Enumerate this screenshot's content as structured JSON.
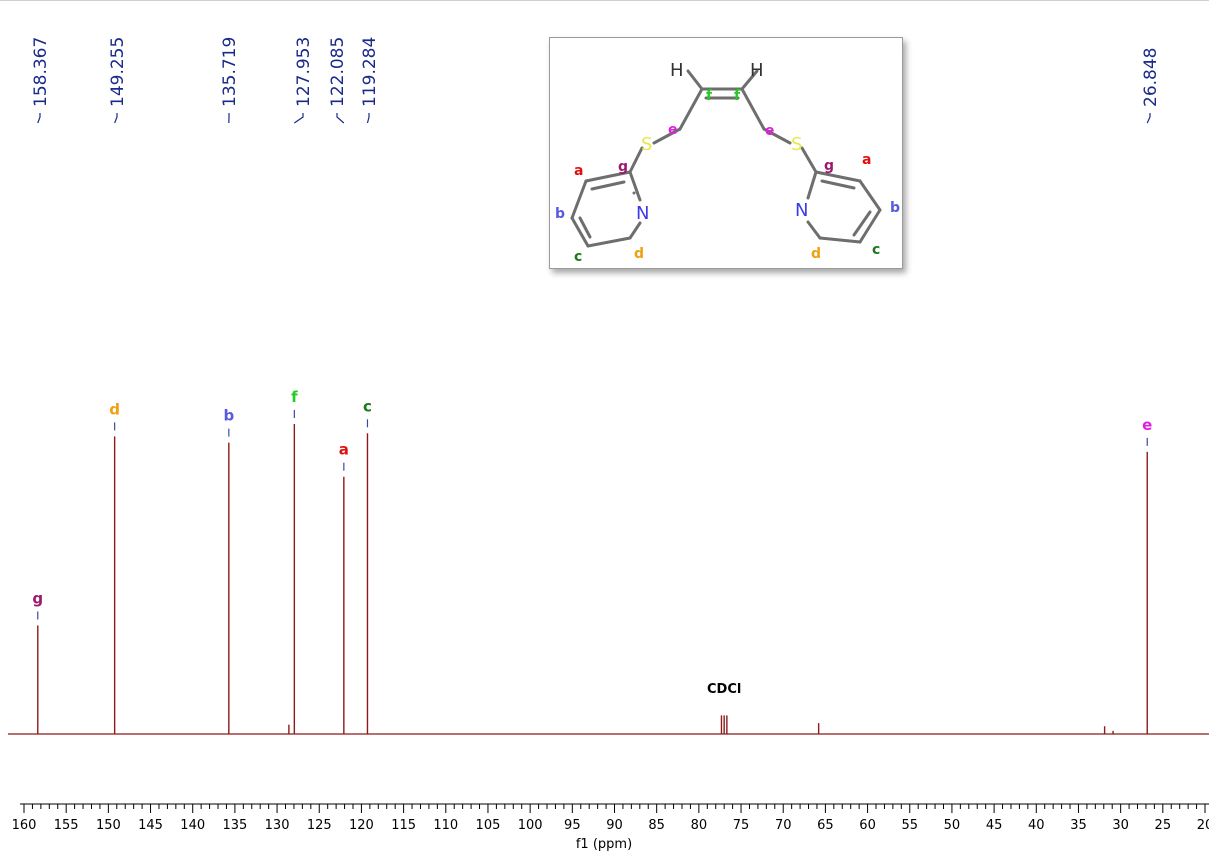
{
  "chart_data": {
    "type": "line",
    "title": "",
    "xlabel": "f1 (ppm)",
    "ylabel": "",
    "xlim": [
      160,
      20
    ],
    "x_reversed": true,
    "grid": false,
    "x_ticks": [
      "160",
      "155",
      "150",
      "145",
      "140",
      "135",
      "130",
      "125",
      "120",
      "115",
      "110",
      "105",
      "100",
      "95",
      "90",
      "85",
      "80",
      "75",
      "70",
      "65",
      "60",
      "55",
      "50",
      "45",
      "40",
      "35",
      "30",
      "25",
      "20"
    ],
    "peak_shift_labels": [
      "158.367",
      "149.255",
      "135.719",
      "127.953",
      "122.085",
      "119.284",
      "26.848"
    ],
    "peaks": [
      {
        "ppm": 158.367,
        "intensity": 0.35,
        "assignment": "g",
        "color": "#9b1a6e"
      },
      {
        "ppm": 149.255,
        "intensity": 0.96,
        "assignment": "d",
        "color": "#f0a010"
      },
      {
        "ppm": 135.719,
        "intensity": 0.94,
        "assignment": "b",
        "color": "#5a5ae0"
      },
      {
        "ppm": 127.953,
        "intensity": 1.0,
        "assignment": "f",
        "color": "#22cc22"
      },
      {
        "ppm": 122.085,
        "intensity": 0.83,
        "assignment": "a",
        "color": "#e01010"
      },
      {
        "ppm": 119.284,
        "intensity": 0.97,
        "assignment": "c",
        "color": "#1a7a1a"
      },
      {
        "ppm": 26.848,
        "intensity": 0.91,
        "assignment": "e",
        "color": "#e020e0"
      }
    ],
    "minor_peaks": [
      {
        "ppm": 128.6,
        "intensity": 0.03
      },
      {
        "ppm": 77.32,
        "intensity": 0.06
      },
      {
        "ppm": 77.0,
        "intensity": 0.06
      },
      {
        "ppm": 76.68,
        "intensity": 0.06
      },
      {
        "ppm": 65.8,
        "intensity": 0.035
      },
      {
        "ppm": 31.9,
        "intensity": 0.025
      },
      {
        "ppm": 30.9,
        "intensity": 0.01
      }
    ],
    "solvent_label": "CDCl",
    "solvent_ppm": 77.0
  },
  "structure": {
    "atoms": {
      "H": "H",
      "S": "S",
      "N": "N"
    },
    "labels": {
      "a": "a",
      "b": "b",
      "c": "c",
      "d": "d",
      "e": "e",
      "f": "f",
      "g": "g"
    },
    "label_colors": {
      "a": "#e01010",
      "b": "#5a5ae0",
      "c": "#1a7a1a",
      "d": "#f0a010",
      "e": "#e020e0",
      "f": "#22cc22",
      "g": "#9b1a6e"
    },
    "atom_colors": {
      "S": "#e8e84a",
      "N": "#3a3ae8",
      "H": "#333333"
    }
  }
}
